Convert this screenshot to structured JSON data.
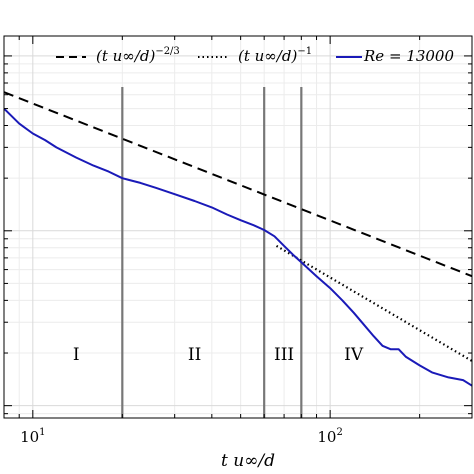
{
  "chart_data": {
    "type": "line",
    "xscale": "log",
    "yscale": "log",
    "xlim": [
      8,
      300
    ],
    "xticks": [
      10,
      100
    ],
    "xtick_labels": [
      "10¹",
      "10²"
    ],
    "xlabel": "t u∞/d",
    "grid": true,
    "legend_position": "top",
    "series": [
      {
        "name": "(t u∞/d)^−2/3",
        "legend_text": "(t u∞/d)",
        "legend_exp": "−2/3",
        "style": "dashed",
        "color": "#000000",
        "x": [
          8,
          300
        ],
        "y": [
          0.62,
          0.055
        ]
      },
      {
        "name": "(t u∞/d)^−1",
        "legend_text": "(t u∞/d)",
        "legend_exp": "−1",
        "style": "dotted",
        "color": "#000000",
        "x": [
          66,
          300
        ],
        "y": [
          0.082,
          0.018
        ]
      },
      {
        "name": "Re = 13000",
        "legend_text": "Re = 13000",
        "style": "solid",
        "color": "#1a1ab8",
        "x": [
          8,
          9,
          10,
          11,
          12,
          14,
          16,
          18,
          20,
          23,
          26,
          30,
          35,
          40,
          45,
          50,
          55,
          60,
          65,
          70,
          75,
          80,
          90,
          100,
          110,
          120,
          130,
          140,
          150,
          160,
          170,
          180,
          200,
          220,
          250,
          280,
          300
        ],
        "y": [
          0.5,
          0.41,
          0.36,
          0.33,
          0.3,
          0.262,
          0.236,
          0.218,
          0.2,
          0.188,
          0.176,
          0.162,
          0.148,
          0.136,
          0.124,
          0.115,
          0.108,
          0.101,
          0.093,
          0.082,
          0.073,
          0.066,
          0.055,
          0.047,
          0.04,
          0.034,
          0.029,
          0.025,
          0.022,
          0.021,
          0.021,
          0.019,
          0.017,
          0.0155,
          0.0145,
          0.014,
          0.013
        ]
      }
    ],
    "vlines": [
      20,
      60,
      80
    ],
    "regions": [
      {
        "label": "I",
        "x": 14
      },
      {
        "label": "II",
        "x": 35
      },
      {
        "label": "III",
        "x": 70
      },
      {
        "label": "IV",
        "x": 120
      }
    ]
  }
}
